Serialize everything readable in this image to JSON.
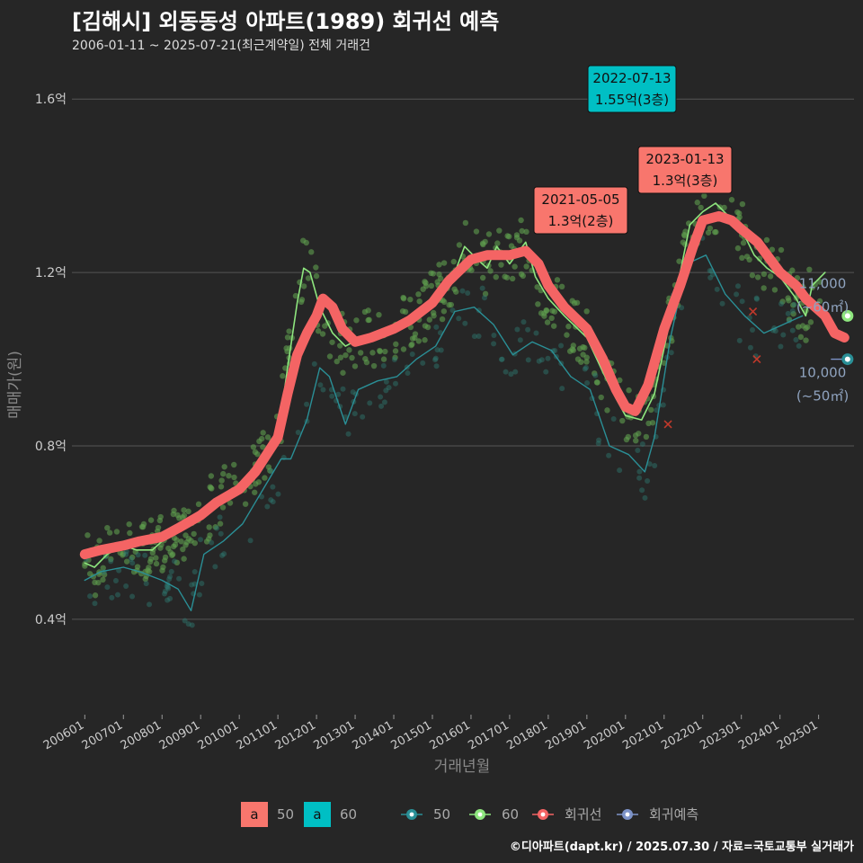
{
  "title": "[김해시] 외동동성 아파트(1989) 회귀선 예측",
  "subtitle": "2006-01-11 ~ 2025-07-21(최근계약일) 전체 거래건",
  "caption": "©디아파트(dapt.kr) / 2025.07.30 / 자료=국토교통부 실거래가",
  "colors": {
    "background": "#262626",
    "grid": "#555555",
    "series_50": "#2a8f96",
    "series_60": "#8ee67e",
    "regression": "#f46464",
    "forecast": "#7d93c8",
    "label_50": "#f8766d",
    "label_60": "#00bfc4",
    "scatter_50": "#2f7d73",
    "scatter_60": "#5f9e4e"
  },
  "chart_data": {
    "type": "line",
    "xlabel": "거래년월",
    "ylabel": "매매가(원)",
    "x_range": [
      "2005-09",
      "2025-12"
    ],
    "ylim": [
      0.18,
      1.7
    ],
    "y_unit": "억",
    "yticks": [
      {
        "value": 0.4,
        "label": "0.4억"
      },
      {
        "value": 0.8,
        "label": "0.8억"
      },
      {
        "value": 1.2,
        "label": "1.2억"
      },
      {
        "value": 1.6,
        "label": "1.6억"
      }
    ],
    "xticks": [
      "200601",
      "200701",
      "200801",
      "200901",
      "201001",
      "201101",
      "201201",
      "201301",
      "201401",
      "201501",
      "201601",
      "201701",
      "201801",
      "201901",
      "202001",
      "202101",
      "202201",
      "202301",
      "202401",
      "202501"
    ],
    "grid": true,
    "legend_position": "bottom",
    "legend": {
      "label_boxes": [
        {
          "glyph": "a",
          "name": "50",
          "color": "#f8766d"
        },
        {
          "glyph": "a",
          "name": "60",
          "color": "#00bfc4"
        }
      ],
      "lines": [
        {
          "name": "50",
          "color": "#2a8f96"
        },
        {
          "name": "60",
          "color": "#8ee67e"
        },
        {
          "name": "회귀선",
          "color": "#f46464"
        },
        {
          "name": "회귀예측",
          "color": "#7d93c8"
        }
      ]
    },
    "series": [
      {
        "name": "회귀선",
        "color": "#f46464",
        "width": 11,
        "points": [
          [
            "2006-01",
            0.55
          ],
          [
            "2006-06",
            0.56
          ],
          [
            "2007-01",
            0.57
          ],
          [
            "2007-06",
            0.58
          ],
          [
            "2008-01",
            0.59
          ],
          [
            "2008-06",
            0.61
          ],
          [
            "2009-01",
            0.64
          ],
          [
            "2009-06",
            0.67
          ],
          [
            "2010-01",
            0.7
          ],
          [
            "2010-06",
            0.74
          ],
          [
            "2011-01",
            0.82
          ],
          [
            "2011-04",
            0.92
          ],
          [
            "2011-07",
            1.01
          ],
          [
            "2011-10",
            1.06
          ],
          [
            "2012-01",
            1.1
          ],
          [
            "2012-03",
            1.14
          ],
          [
            "2012-06",
            1.12
          ],
          [
            "2012-09",
            1.07
          ],
          [
            "2013-01",
            1.04
          ],
          [
            "2013-06",
            1.05
          ],
          [
            "2014-01",
            1.07
          ],
          [
            "2014-06",
            1.09
          ],
          [
            "2015-01",
            1.13
          ],
          [
            "2015-06",
            1.18
          ],
          [
            "2016-01",
            1.23
          ],
          [
            "2016-06",
            1.24
          ],
          [
            "2017-01",
            1.24
          ],
          [
            "2017-06",
            1.25
          ],
          [
            "2017-10",
            1.22
          ],
          [
            "2018-01",
            1.17
          ],
          [
            "2018-06",
            1.12
          ],
          [
            "2019-01",
            1.07
          ],
          [
            "2019-06",
            1.0
          ],
          [
            "2019-10",
            0.93
          ],
          [
            "2020-01",
            0.89
          ],
          [
            "2020-04",
            0.88
          ],
          [
            "2020-08",
            0.94
          ],
          [
            "2021-01",
            1.07
          ],
          [
            "2021-06",
            1.17
          ],
          [
            "2021-10",
            1.26
          ],
          [
            "2022-01",
            1.32
          ],
          [
            "2022-06",
            1.33
          ],
          [
            "2022-10",
            1.32
          ],
          [
            "2023-01",
            1.3
          ],
          [
            "2023-06",
            1.27
          ],
          [
            "2023-10",
            1.23
          ],
          [
            "2024-01",
            1.2
          ],
          [
            "2024-06",
            1.17
          ],
          [
            "2024-09",
            1.14
          ],
          [
            "2024-12",
            1.12
          ],
          [
            "2025-03",
            1.1
          ],
          [
            "2025-06",
            1.06
          ],
          [
            "2025-09",
            1.05
          ]
        ]
      },
      {
        "name": "60",
        "color": "#8ee67e",
        "width": 1.6,
        "points": [
          [
            "2006-01",
            0.53
          ],
          [
            "2006-04",
            0.52
          ],
          [
            "2006-08",
            0.55
          ],
          [
            "2007-01",
            0.57
          ],
          [
            "2007-05",
            0.56
          ],
          [
            "2007-10",
            0.56
          ],
          [
            "2008-01",
            0.58
          ],
          [
            "2008-06",
            0.6
          ],
          [
            "2009-01",
            0.63
          ],
          [
            "2009-06",
            0.68
          ],
          [
            "2010-01",
            0.7
          ],
          [
            "2010-06",
            0.74
          ],
          [
            "2011-01",
            0.82
          ],
          [
            "2011-04",
            0.98
          ],
          [
            "2011-07",
            1.13
          ],
          [
            "2011-09",
            1.21
          ],
          [
            "2011-11",
            1.2
          ],
          [
            "2012-02",
            1.12
          ],
          [
            "2012-06",
            1.06
          ],
          [
            "2012-10",
            1.03
          ],
          [
            "2013-03",
            1.05
          ],
          [
            "2013-09",
            1.05
          ],
          [
            "2014-03",
            1.08
          ],
          [
            "2014-09",
            1.1
          ],
          [
            "2015-03",
            1.15
          ],
          [
            "2015-08",
            1.2
          ],
          [
            "2015-11",
            1.26
          ],
          [
            "2016-03",
            1.23
          ],
          [
            "2016-06",
            1.21
          ],
          [
            "2016-09",
            1.26
          ],
          [
            "2017-01",
            1.22
          ],
          [
            "2017-06",
            1.27
          ],
          [
            "2017-09",
            1.19
          ],
          [
            "2018-01",
            1.14
          ],
          [
            "2018-06",
            1.1
          ],
          [
            "2019-01",
            1.05
          ],
          [
            "2019-06",
            0.97
          ],
          [
            "2019-10",
            0.91
          ],
          [
            "2020-01",
            0.87
          ],
          [
            "2020-06",
            0.86
          ],
          [
            "2020-10",
            0.92
          ],
          [
            "2021-02",
            1.06
          ],
          [
            "2021-06",
            1.2
          ],
          [
            "2021-09",
            1.31
          ],
          [
            "2022-01",
            1.34
          ],
          [
            "2022-05",
            1.36
          ],
          [
            "2022-09",
            1.33
          ],
          [
            "2023-01",
            1.3
          ],
          [
            "2023-05",
            1.24
          ],
          [
            "2023-09",
            1.21
          ],
          [
            "2024-01",
            1.19
          ],
          [
            "2024-06",
            1.14
          ],
          [
            "2024-09",
            1.1
          ],
          [
            "2024-11",
            1.17
          ],
          [
            "2025-03",
            1.2
          ]
        ]
      },
      {
        "name": "50",
        "color": "#2a8f96",
        "width": 1.4,
        "points": [
          [
            "2006-01",
            0.49
          ],
          [
            "2006-06",
            0.51
          ],
          [
            "2007-01",
            0.52
          ],
          [
            "2007-06",
            0.51
          ],
          [
            "2008-01",
            0.49
          ],
          [
            "2008-06",
            0.47
          ],
          [
            "2008-10",
            0.42
          ],
          [
            "2009-02",
            0.55
          ],
          [
            "2009-08",
            0.58
          ],
          [
            "2010-02",
            0.62
          ],
          [
            "2010-06",
            0.67
          ],
          [
            "2010-10",
            0.72
          ],
          [
            "2011-02",
            0.77
          ],
          [
            "2011-05",
            0.77
          ],
          [
            "2011-10",
            0.86
          ],
          [
            "2012-02",
            0.98
          ],
          [
            "2012-05",
            0.96
          ],
          [
            "2012-10",
            0.85
          ],
          [
            "2013-02",
            0.93
          ],
          [
            "2013-08",
            0.95
          ],
          [
            "2014-02",
            0.96
          ],
          [
            "2014-08",
            1.0
          ],
          [
            "2015-02",
            1.03
          ],
          [
            "2015-08",
            1.11
          ],
          [
            "2016-02",
            1.12
          ],
          [
            "2016-08",
            1.08
          ],
          [
            "2017-02",
            1.01
          ],
          [
            "2017-08",
            1.04
          ],
          [
            "2018-02",
            1.02
          ],
          [
            "2018-08",
            0.96
          ],
          [
            "2019-02",
            0.93
          ],
          [
            "2019-08",
            0.8
          ],
          [
            "2020-02",
            0.78
          ],
          [
            "2020-07",
            0.74
          ],
          [
            "2020-10",
            0.82
          ],
          [
            "2021-03",
            1.05
          ],
          [
            "2021-08",
            1.22
          ],
          [
            "2022-02",
            1.24
          ],
          [
            "2022-08",
            1.15
          ],
          [
            "2023-02",
            1.1
          ],
          [
            "2023-08",
            1.06
          ],
          [
            "2024-02",
            1.08
          ],
          [
            "2024-08",
            1.1
          ]
        ]
      },
      {
        "name": "회귀예측",
        "color": "#7d93c8",
        "width": 1.4,
        "points": [
          [
            "2025-05",
            1.0
          ],
          [
            "2025-09",
            1.0
          ]
        ]
      }
    ],
    "endpoint_labels": [
      {
        "series": "60",
        "value": 1.1,
        "lines": [
          "11,000",
          "(~60㎡)"
        ]
      },
      {
        "series": "50",
        "value": 1.0,
        "lines": [
          "10,000",
          "(~50㎡)"
        ]
      }
    ],
    "annotations": [
      {
        "date": "2022-07-13",
        "price": "1.55억(3층)",
        "value": 1.55,
        "group": "60"
      },
      {
        "date": "2023-01-13",
        "price": "1.3억(3층)",
        "value": 1.3,
        "group": "50"
      },
      {
        "date": "2021-05-05",
        "price": "1.3억(2층)",
        "value": 1.3,
        "group": "50"
      }
    ]
  }
}
